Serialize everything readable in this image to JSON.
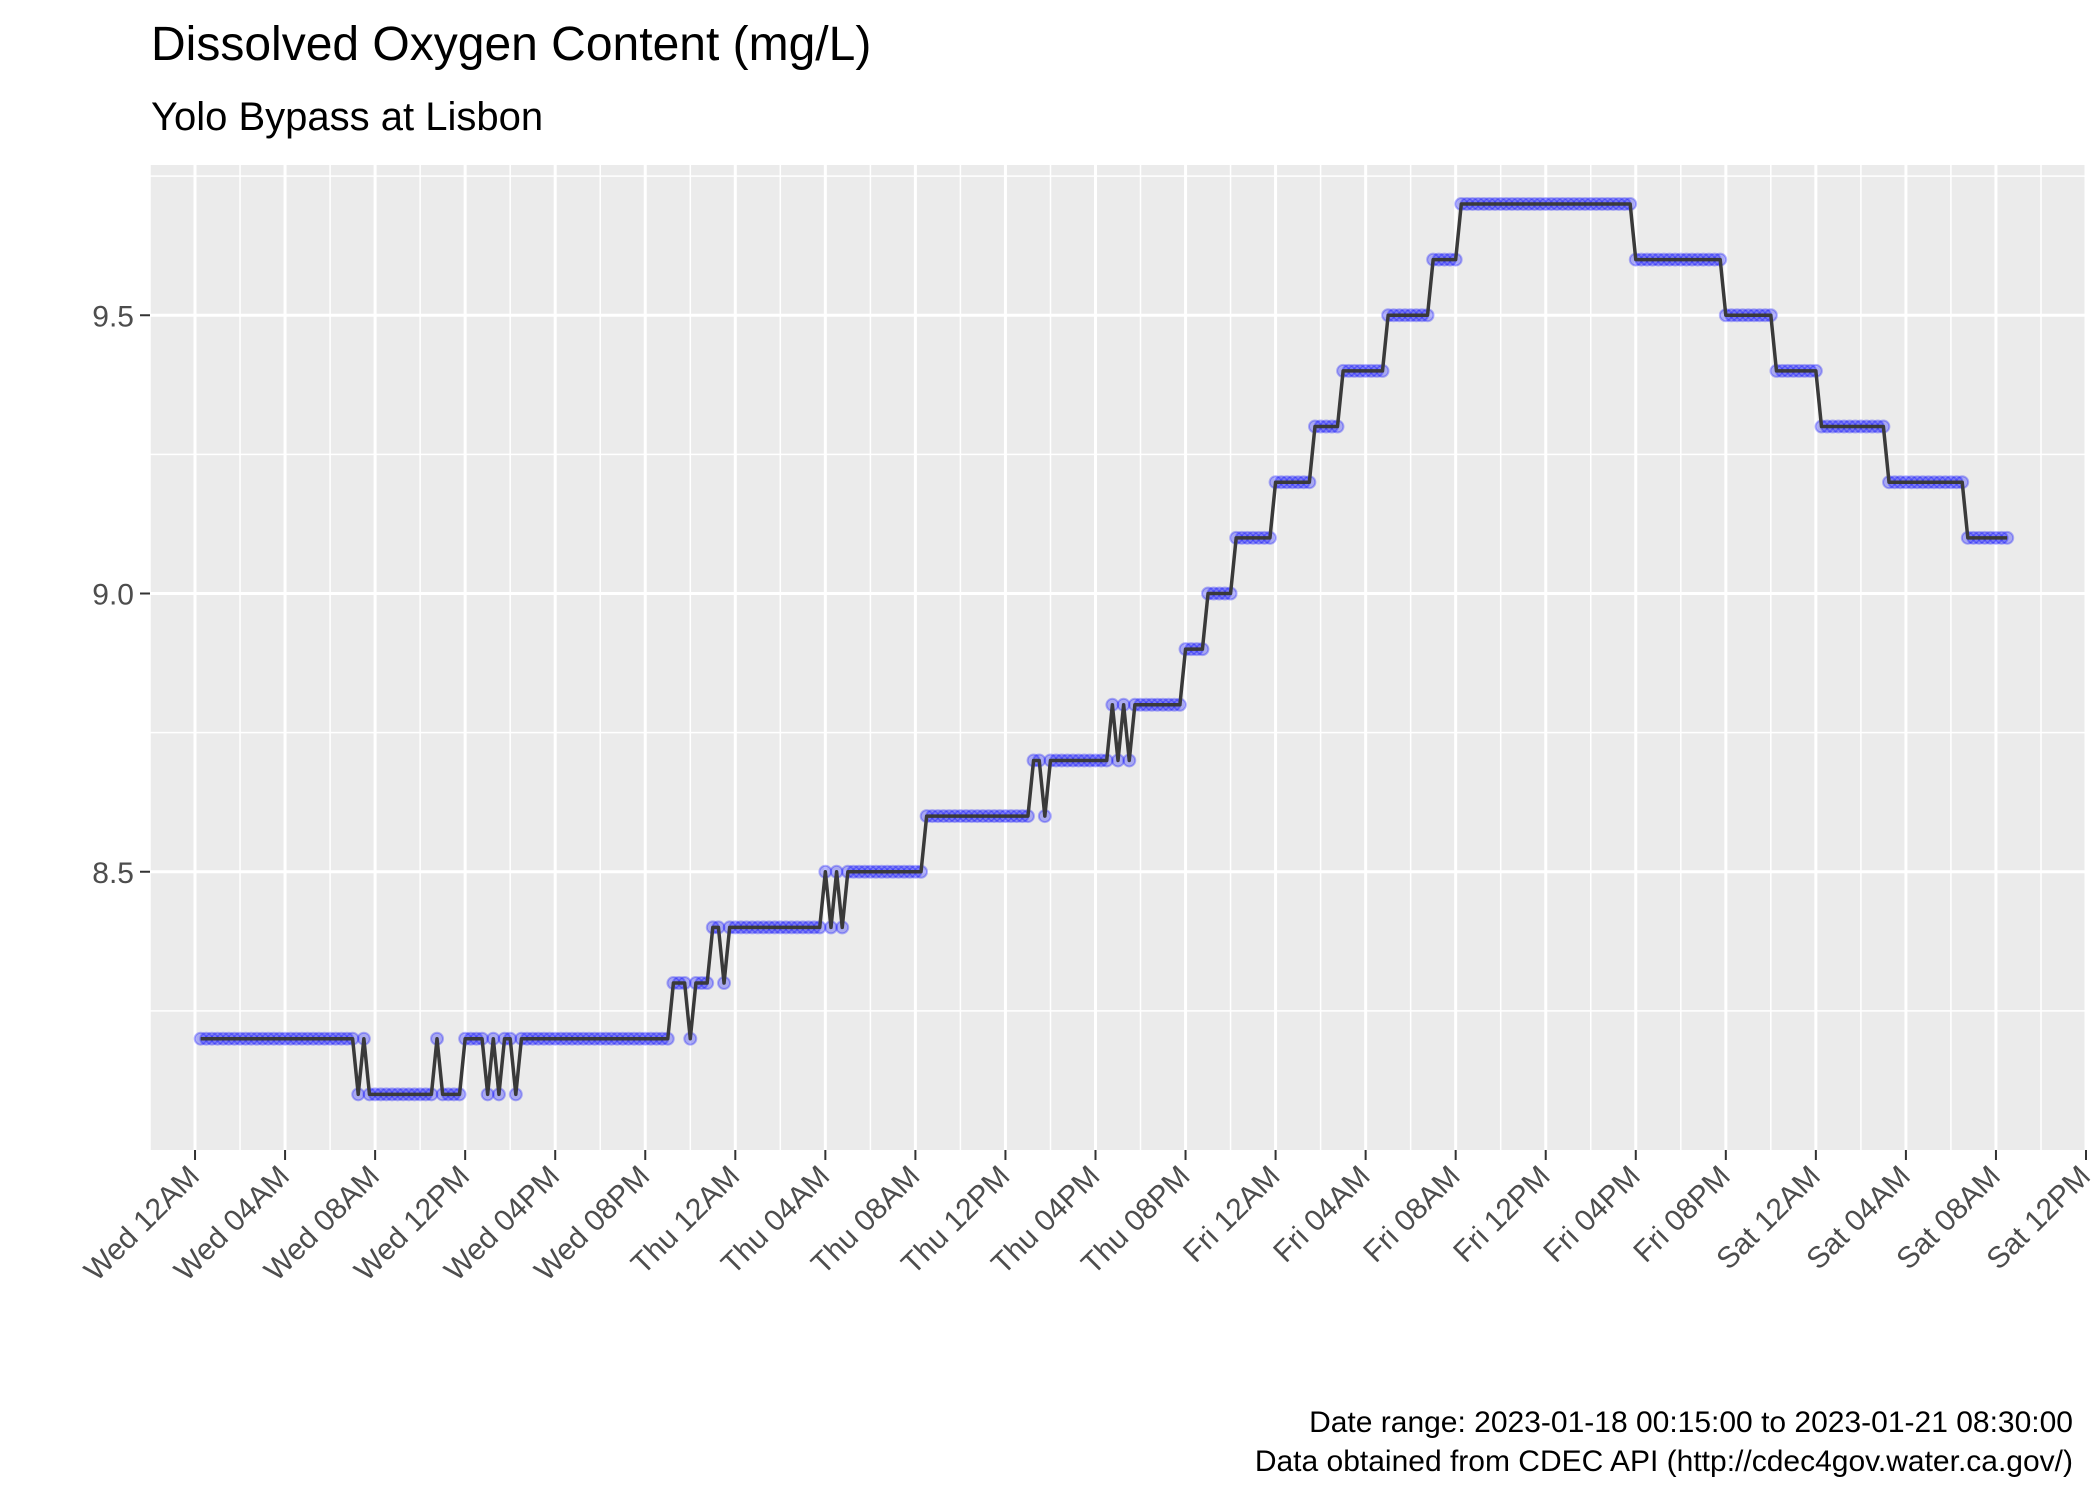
{
  "chart_data": {
    "type": "line",
    "title": "Dissolved Oxygen Content (mg/L)",
    "subtitle": "Yolo Bypass at Lisbon",
    "caption": [
      "Date range: 2023-01-18 00:15:00 to 2023-01-21 08:30:00",
      "Data obtained from CDEC API (http://cdec4gov.water.ca.gov/)"
    ],
    "xlabel": "",
    "ylabel": "",
    "x_tick_labels": [
      "Wed 12AM",
      "Wed 04AM",
      "Wed 08AM",
      "Wed 12PM",
      "Wed 04PM",
      "Wed 08PM",
      "Thu 12AM",
      "Thu 04AM",
      "Thu 08AM",
      "Thu 12PM",
      "Thu 04PM",
      "Thu 08PM",
      "Fri 12AM",
      "Fri 04AM",
      "Fri 08AM",
      "Fri 12PM",
      "Fri 04PM",
      "Fri 08PM",
      "Sat 12AM",
      "Sat 04AM",
      "Sat 08AM",
      "Sat 12PM"
    ],
    "y_tick_labels": [
      "8.5",
      "9.0",
      "9.5"
    ],
    "x_range": [
      "2023-01-17 22:00",
      "2023-01-21 12:00"
    ],
    "ylim": [
      8.0,
      9.77
    ],
    "grid": true,
    "line_color": "#3a3a3a",
    "point_color": "#0000ff",
    "panel_background": "#ebebeb",
    "series": [
      {
        "steps": [
          [
            "2023-01-18 00:15",
            8.2
          ],
          [
            "2023-01-18 07:15",
            8.1
          ],
          [
            "2023-01-18 07:30",
            8.2
          ],
          [
            "2023-01-18 07:45",
            8.1
          ],
          [
            "2023-01-18 10:45",
            8.2
          ],
          [
            "2023-01-18 11:00",
            8.1
          ],
          [
            "2023-01-18 12:00",
            8.2
          ],
          [
            "2023-01-18 13:00",
            8.1
          ],
          [
            "2023-01-18 13:15",
            8.2
          ],
          [
            "2023-01-18 13:30",
            8.1
          ],
          [
            "2023-01-18 13:45",
            8.2
          ],
          [
            "2023-01-18 14:15",
            8.1
          ],
          [
            "2023-01-18 14:30",
            8.2
          ],
          [
            "2023-01-18 21:15",
            8.3
          ],
          [
            "2023-01-18 22:00",
            8.2
          ],
          [
            "2023-01-18 22:15",
            8.3
          ],
          [
            "2023-01-18 23:00",
            8.4
          ],
          [
            "2023-01-18 23:30",
            8.3
          ],
          [
            "2023-01-18 23:45",
            8.4
          ],
          [
            "2023-01-19 04:00",
            8.5
          ],
          [
            "2023-01-19 04:15",
            8.4
          ],
          [
            "2023-01-19 04:30",
            8.5
          ],
          [
            "2023-01-19 04:45",
            8.4
          ],
          [
            "2023-01-19 05:00",
            8.5
          ],
          [
            "2023-01-19 08:30",
            8.6
          ],
          [
            "2023-01-19 13:15",
            8.7
          ],
          [
            "2023-01-19 13:45",
            8.6
          ],
          [
            "2023-01-19 14:00",
            8.7
          ],
          [
            "2023-01-19 16:45",
            8.8
          ],
          [
            "2023-01-19 17:00",
            8.7
          ],
          [
            "2023-01-19 17:15",
            8.8
          ],
          [
            "2023-01-19 17:30",
            8.7
          ],
          [
            "2023-01-19 17:45",
            8.8
          ],
          [
            "2023-01-19 20:00",
            8.9
          ],
          [
            "2023-01-19 21:00",
            9.0
          ],
          [
            "2023-01-19 22:15",
            9.1
          ],
          [
            "2023-01-20 00:00",
            9.2
          ],
          [
            "2023-01-20 01:45",
            9.3
          ],
          [
            "2023-01-20 03:00",
            9.4
          ],
          [
            "2023-01-20 05:00",
            9.5
          ],
          [
            "2023-01-20 07:00",
            9.6
          ],
          [
            "2023-01-20 08:15",
            9.7
          ],
          [
            "2023-01-20 16:00",
            9.6
          ],
          [
            "2023-01-20 20:00",
            9.5
          ],
          [
            "2023-01-20 22:15",
            9.4
          ],
          [
            "2023-01-21 00:15",
            9.3
          ],
          [
            "2023-01-21 03:15",
            9.2
          ],
          [
            "2023-01-21 06:45",
            9.1
          ]
        ],
        "end": "2023-01-21 08:30",
        "interval_minutes": 15
      }
    ]
  }
}
